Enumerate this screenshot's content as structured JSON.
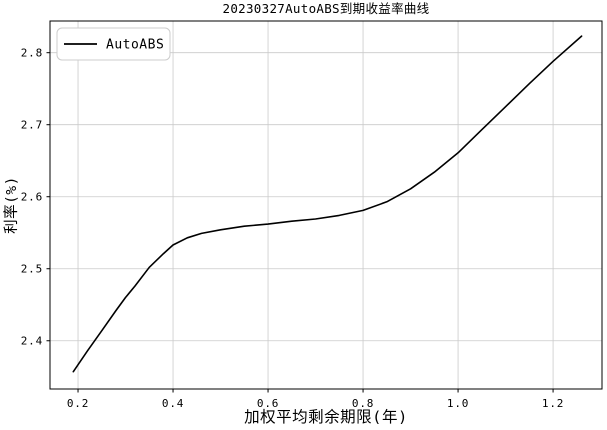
{
  "chart_data": {
    "type": "line",
    "title": "20230327AutoABS到期收益率曲线",
    "xlabel": "加权平均剩余期限(年)",
    "ylabel": "利率(%)",
    "grid": true,
    "legend_position": "upper-left",
    "xlim": [
      0.141,
      1.303
    ],
    "ylim": [
      2.333,
      2.844
    ],
    "xticks": [
      0.2,
      0.4,
      0.6,
      0.8,
      1.0,
      1.2
    ],
    "xtick_labels": [
      "0.2",
      "0.4",
      "0.6",
      "0.8",
      "1.0",
      "1.2"
    ],
    "yticks": [
      2.4,
      2.5,
      2.6,
      2.7,
      2.8
    ],
    "ytick_labels": [
      "2.4",
      "2.5",
      "2.6",
      "2.7",
      "2.8"
    ],
    "series": [
      {
        "name": "AutoABS",
        "color": "#000000",
        "x": [
          0.19,
          0.22,
          0.25,
          0.28,
          0.3,
          0.32,
          0.35,
          0.38,
          0.4,
          0.43,
          0.46,
          0.5,
          0.55,
          0.6,
          0.65,
          0.7,
          0.75,
          0.8,
          0.85,
          0.9,
          0.95,
          1.0,
          1.05,
          1.1,
          1.15,
          1.2,
          1.26
        ],
        "y": [
          2.357,
          2.386,
          2.414,
          2.442,
          2.46,
          2.476,
          2.502,
          2.521,
          2.533,
          2.543,
          2.549,
          2.554,
          2.559,
          2.562,
          2.566,
          2.569,
          2.574,
          2.581,
          2.593,
          2.611,
          2.634,
          2.661,
          2.693,
          2.725,
          2.757,
          2.788,
          2.823
        ]
      }
    ]
  },
  "colors": {
    "background": "#ffffff",
    "grid": "#cacaca",
    "spine": "#000000",
    "line": "#000000",
    "legend_border": "#cccccc",
    "legend_bg": "#ffffff"
  }
}
